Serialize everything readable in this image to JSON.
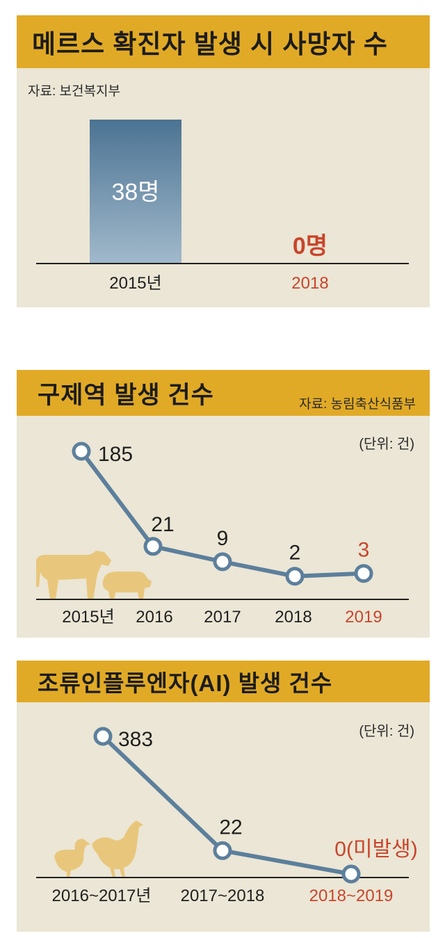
{
  "colors": {
    "band": "#e1aa26",
    "panel": "#ebe6d5",
    "line": "#5c7f9c",
    "red": "#c8452c",
    "text": "#1f1f1f",
    "bar_top": "#4c7393",
    "bar_bottom": "#a1b9cb",
    "animal": "#e8c77c"
  },
  "icons": [
    "cow-icon",
    "pig-icon",
    "duck-icon",
    "chicken-icon"
  ],
  "chart_data": [
    {
      "type": "bar",
      "title": "메르스 확진자 발생 시 사망자 수",
      "source": "자료: 보건복지부",
      "categories": [
        "2015년",
        "2018"
      ],
      "values": [
        38,
        0
      ],
      "value_labels": [
        "38명",
        "0명"
      ],
      "highlight": [
        false,
        true
      ]
    },
    {
      "type": "line",
      "title": "구제역 발생 건수",
      "source": "자료: 농림축산식품부",
      "unit": "(단위: 건)",
      "categories": [
        "2015년",
        "2016",
        "2017",
        "2018",
        "2019"
      ],
      "values": [
        185,
        21,
        9,
        2,
        3
      ],
      "value_labels": [
        "185",
        "21",
        "9",
        "2",
        "3"
      ],
      "highlight": [
        false,
        false,
        false,
        false,
        true
      ]
    },
    {
      "type": "line",
      "title": "조류인플루엔자(AI) 발생 건수",
      "unit": "(단위: 건)",
      "categories": [
        "2016~2017년",
        "2017~2018",
        "2018~2019"
      ],
      "values": [
        383,
        22,
        0
      ],
      "value_labels": [
        "383",
        "22",
        "0(미발생)"
      ],
      "highlight": [
        false,
        false,
        true
      ]
    }
  ]
}
